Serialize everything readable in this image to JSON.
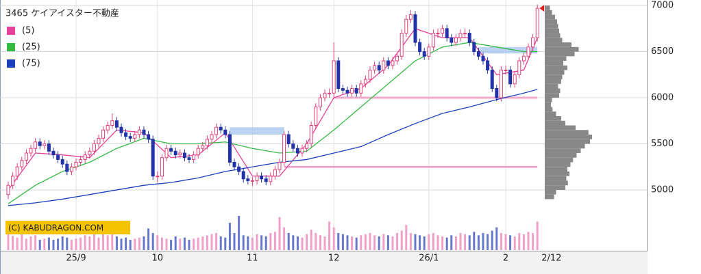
{
  "chart_data": {
    "type": "candlestick",
    "title": "3465 ケイアイスター不動産",
    "copyright": "(C) KABUDRAGON.COM",
    "last_date": "2/12",
    "categories": [
      null,
      null,
      null,
      null,
      null,
      null,
      null,
      null,
      null,
      null,
      null,
      null,
      null,
      null,
      null,
      "25/9",
      null,
      null,
      null,
      null,
      null,
      null,
      null,
      null,
      null,
      null,
      null,
      null,
      null,
      null,
      null,
      null,
      null,
      "10",
      null,
      null,
      null,
      null,
      null,
      null,
      null,
      null,
      null,
      null,
      null,
      null,
      null,
      null,
      null,
      null,
      null,
      null,
      null,
      null,
      "11",
      null,
      null,
      null,
      null,
      null,
      null,
      null,
      null,
      null,
      null,
      null,
      null,
      null,
      null,
      null,
      null,
      null,
      "12",
      null,
      null,
      null,
      null,
      null,
      null,
      null,
      null,
      null,
      null,
      null,
      null,
      null,
      null,
      null,
      null,
      null,
      null,
      null,
      null,
      "26/1",
      null,
      null,
      null,
      null,
      null,
      null,
      null,
      null,
      null,
      null,
      null,
      null,
      null,
      null,
      null,
      null,
      "2",
      null,
      null,
      null,
      null,
      null,
      null,
      null
    ],
    "open": [
      4950,
      5050,
      5150,
      5250,
      5320,
      5400,
      5450,
      5520,
      5480,
      5500,
      5420,
      5380,
      5330,
      5280,
      5200,
      5250,
      5300,
      5330,
      5380,
      5420,
      5500,
      5560,
      5650,
      5700,
      5750,
      5680,
      5620,
      5580,
      5560,
      5600,
      5650,
      5600,
      5550,
      5150,
      5150,
      5350,
      5450,
      5420,
      5380,
      5400,
      5350,
      5330,
      5380,
      5450,
      5480,
      5550,
      5600,
      5680,
      5650,
      5600,
      5300,
      5250,
      5200,
      5120,
      5100,
      5100,
      5150,
      5120,
      5090,
      5150,
      5220,
      5300,
      5600,
      5500,
      5450,
      5400,
      5450,
      5500,
      5700,
      5900,
      6000,
      6050,
      6050,
      6400,
      6100,
      6080,
      6050,
      6100,
      6050,
      6150,
      6200,
      6300,
      6350,
      6300,
      6400,
      6350,
      6400,
      6450,
      6700,
      6850,
      6900,
      6600,
      6500,
      6450,
      6550,
      6700,
      6700,
      6750,
      6650,
      6600,
      6650,
      6700,
      6700,
      6600,
      6500,
      6450,
      6400,
      6300,
      6100,
      6000,
      6300,
      6300,
      6150,
      6250,
      6400,
      6450,
      6550,
      6650
    ],
    "high": [
      5090,
      5190,
      5290,
      5360,
      5440,
      5490,
      5560,
      5560,
      5540,
      5540,
      5460,
      5420,
      5370,
      5320,
      5290,
      5340,
      5370,
      5420,
      5460,
      5540,
      5600,
      5690,
      5740,
      5830,
      5790,
      5720,
      5660,
      5620,
      5640,
      5690,
      5690,
      5640,
      5590,
      5200,
      5390,
      5490,
      5490,
      5460,
      5440,
      5440,
      5390,
      5420,
      5490,
      5520,
      5590,
      5640,
      5720,
      5720,
      5690,
      5640,
      5340,
      5290,
      5240,
      5160,
      5140,
      5190,
      5190,
      5160,
      5190,
      5260,
      5340,
      5640,
      5640,
      5540,
      5490,
      5490,
      5540,
      5740,
      5940,
      6040,
      6090,
      6100,
      6600,
      6440,
      6140,
      6120,
      6140,
      6140,
      6190,
      6240,
      6340,
      6390,
      6390,
      6440,
      6440,
      6440,
      6490,
      6740,
      6900,
      6950,
      6940,
      6640,
      6540,
      6590,
      6740,
      6750,
      6790,
      6790,
      6690,
      6690,
      6740,
      6750,
      6740,
      6640,
      6540,
      6490,
      6440,
      6340,
      6140,
      6340,
      6350,
      6340,
      6290,
      6440,
      6490,
      6590,
      6690,
      7010
    ],
    "low": [
      4900,
      5010,
      5110,
      5210,
      5280,
      5360,
      5410,
      5440,
      5440,
      5380,
      5340,
      5290,
      5240,
      5160,
      5160,
      5210,
      5260,
      5290,
      5340,
      5380,
      5460,
      5520,
      5610,
      5660,
      5640,
      5580,
      5540,
      5520,
      5520,
      5560,
      5560,
      5510,
      5110,
      5080,
      5110,
      5310,
      5380,
      5340,
      5340,
      5310,
      5290,
      5290,
      5340,
      5410,
      5440,
      5510,
      5560,
      5610,
      5560,
      5260,
      5210,
      5160,
      5080,
      5060,
      5040,
      5060,
      5080,
      5050,
      5050,
      5110,
      5180,
      5260,
      5460,
      5410,
      5360,
      5360,
      5410,
      5460,
      5660,
      5860,
      5960,
      6000,
      6010,
      6060,
      6040,
      6010,
      6010,
      6010,
      6010,
      6110,
      6160,
      6260,
      6260,
      6260,
      6310,
      6310,
      6360,
      6410,
      6660,
      6810,
      6560,
      6460,
      6410,
      6410,
      6510,
      6650,
      6660,
      6610,
      6560,
      6560,
      6610,
      6650,
      6560,
      6460,
      6410,
      6360,
      6260,
      6060,
      5960,
      5960,
      6250,
      6110,
      6110,
      6210,
      6360,
      6410,
      6510,
      6610
    ],
    "close": [
      5050,
      5150,
      5250,
      5320,
      5400,
      5450,
      5520,
      5480,
      5500,
      5420,
      5380,
      5330,
      5280,
      5200,
      5250,
      5300,
      5330,
      5380,
      5420,
      5500,
      5560,
      5650,
      5700,
      5750,
      5680,
      5620,
      5580,
      5560,
      5600,
      5650,
      5600,
      5550,
      5150,
      5150,
      5350,
      5450,
      5420,
      5380,
      5400,
      5350,
      5330,
      5380,
      5450,
      5480,
      5550,
      5600,
      5680,
      5650,
      5600,
      5300,
      5250,
      5200,
      5120,
      5100,
      5100,
      5150,
      5120,
      5090,
      5150,
      5220,
      5300,
      5600,
      5500,
      5450,
      5400,
      5450,
      5500,
      5700,
      5900,
      6000,
      6050,
      6050,
      6400,
      6100,
      6080,
      6050,
      6100,
      6050,
      6150,
      6200,
      6300,
      6350,
      6300,
      6400,
      6350,
      6400,
      6450,
      6700,
      6850,
      6900,
      6600,
      6500,
      6450,
      6550,
      6700,
      6700,
      6750,
      6650,
      6600,
      6650,
      6700,
      6700,
      6600,
      6500,
      6450,
      6400,
      6300,
      6100,
      6000,
      6300,
      6300,
      6150,
      6250,
      6400,
      6450,
      6550,
      6650,
      6970
    ],
    "volume": [
      30,
      25,
      22,
      28,
      20,
      24,
      26,
      18,
      20,
      22,
      18,
      20,
      24,
      22,
      18,
      20,
      22,
      26,
      24,
      28,
      22,
      30,
      26,
      34,
      24,
      20,
      22,
      18,
      20,
      22,
      24,
      38,
      30,
      26,
      22,
      20,
      18,
      24,
      20,
      22,
      18,
      20,
      22,
      24,
      26,
      28,
      30,
      24,
      22,
      48,
      30,
      60,
      26,
      24,
      22,
      28,
      26,
      24,
      30,
      32,
      58,
      40,
      30,
      26,
      24,
      22,
      28,
      36,
      30,
      26,
      24,
      50,
      40,
      30,
      28,
      26,
      24,
      22,
      26,
      28,
      30,
      26,
      24,
      28,
      26,
      24,
      30,
      34,
      44,
      30,
      28,
      26,
      24,
      28,
      30,
      26,
      24,
      22,
      26,
      24,
      30,
      28,
      26,
      32,
      26,
      30,
      28,
      34,
      40,
      30,
      28,
      26,
      24,
      30,
      28,
      32,
      30,
      50
    ],
    "up_color": "#e0407a",
    "down_color": "#2233aa",
    "series": [
      {
        "name": "(5)",
        "color": "#e8409a",
        "x": [
          0,
          6,
          12,
          18,
          24,
          30,
          36,
          42,
          48,
          54,
          60,
          66,
          72,
          78,
          84,
          90,
          96,
          102,
          108,
          114,
          117
        ],
        "values": [
          5000,
          5400,
          5380,
          5350,
          5650,
          5620,
          5350,
          5380,
          5620,
          5150,
          5150,
          5500,
          6000,
          6100,
          6350,
          6750,
          6650,
          6650,
          6250,
          6300,
          6650
        ]
      },
      {
        "name": "(25)",
        "color": "#33bb44",
        "x": [
          0,
          6,
          12,
          18,
          24,
          30,
          36,
          42,
          48,
          54,
          60,
          66,
          72,
          78,
          84,
          90,
          96,
          102,
          108,
          114,
          117
        ],
        "values": [
          4850,
          5050,
          5200,
          5300,
          5450,
          5560,
          5500,
          5500,
          5520,
          5450,
          5400,
          5420,
          5650,
          5900,
          6150,
          6400,
          6550,
          6600,
          6550,
          6500,
          6500
        ]
      },
      {
        "name": "(75)",
        "color": "#1a3fbf",
        "x": [
          0,
          6,
          12,
          18,
          24,
          30,
          36,
          42,
          48,
          54,
          60,
          66,
          72,
          78,
          84,
          90,
          96,
          102,
          108,
          114,
          117
        ],
        "values": [
          4830,
          4860,
          4900,
          4950,
          5000,
          5050,
          5080,
          5130,
          5200,
          5250,
          5300,
          5330,
          5400,
          5470,
          5600,
          5720,
          5830,
          5900,
          5980,
          6050,
          6090
        ]
      }
    ],
    "price_lines": [
      {
        "price": 6000,
        "from": 72,
        "to": 117
      },
      {
        "price": 5250,
        "from": 61,
        "to": 117
      }
    ],
    "gap_zones": [
      {
        "low": 5600,
        "high": 5680,
        "from": 49,
        "to": 61
      },
      {
        "low": 6480,
        "high": 6550,
        "from": 104,
        "to": 117
      }
    ],
    "profile": {
      "bins": [
        4900,
        4950,
        5000,
        5050,
        5100,
        5150,
        5200,
        5250,
        5300,
        5350,
        5400,
        5450,
        5500,
        5550,
        5600,
        5650,
        5700,
        5750,
        5800,
        5850,
        5900,
        5950,
        6000,
        6050,
        6100,
        6150,
        6200,
        6250,
        6300,
        6350,
        6400,
        6450,
        6500,
        6550,
        6600,
        6650,
        6700,
        6750,
        6800,
        6850,
        6900,
        6950,
        7000
      ],
      "counts": [
        18,
        22,
        40,
        45,
        42,
        48,
        44,
        50,
        55,
        62,
        70,
        78,
        88,
        92,
        85,
        60,
        40,
        32,
        22,
        15,
        12,
        14,
        28,
        30,
        26,
        32,
        34,
        38,
        44,
        36,
        42,
        58,
        66,
        52,
        34,
        30,
        28,
        26,
        24,
        20,
        14,
        10
      ],
      "color": "#888888"
    },
    "ylim": [
      4340,
      7060
    ],
    "yticks": [
      5000,
      5500,
      6000,
      6500,
      7000
    ],
    "grid": true
  }
}
